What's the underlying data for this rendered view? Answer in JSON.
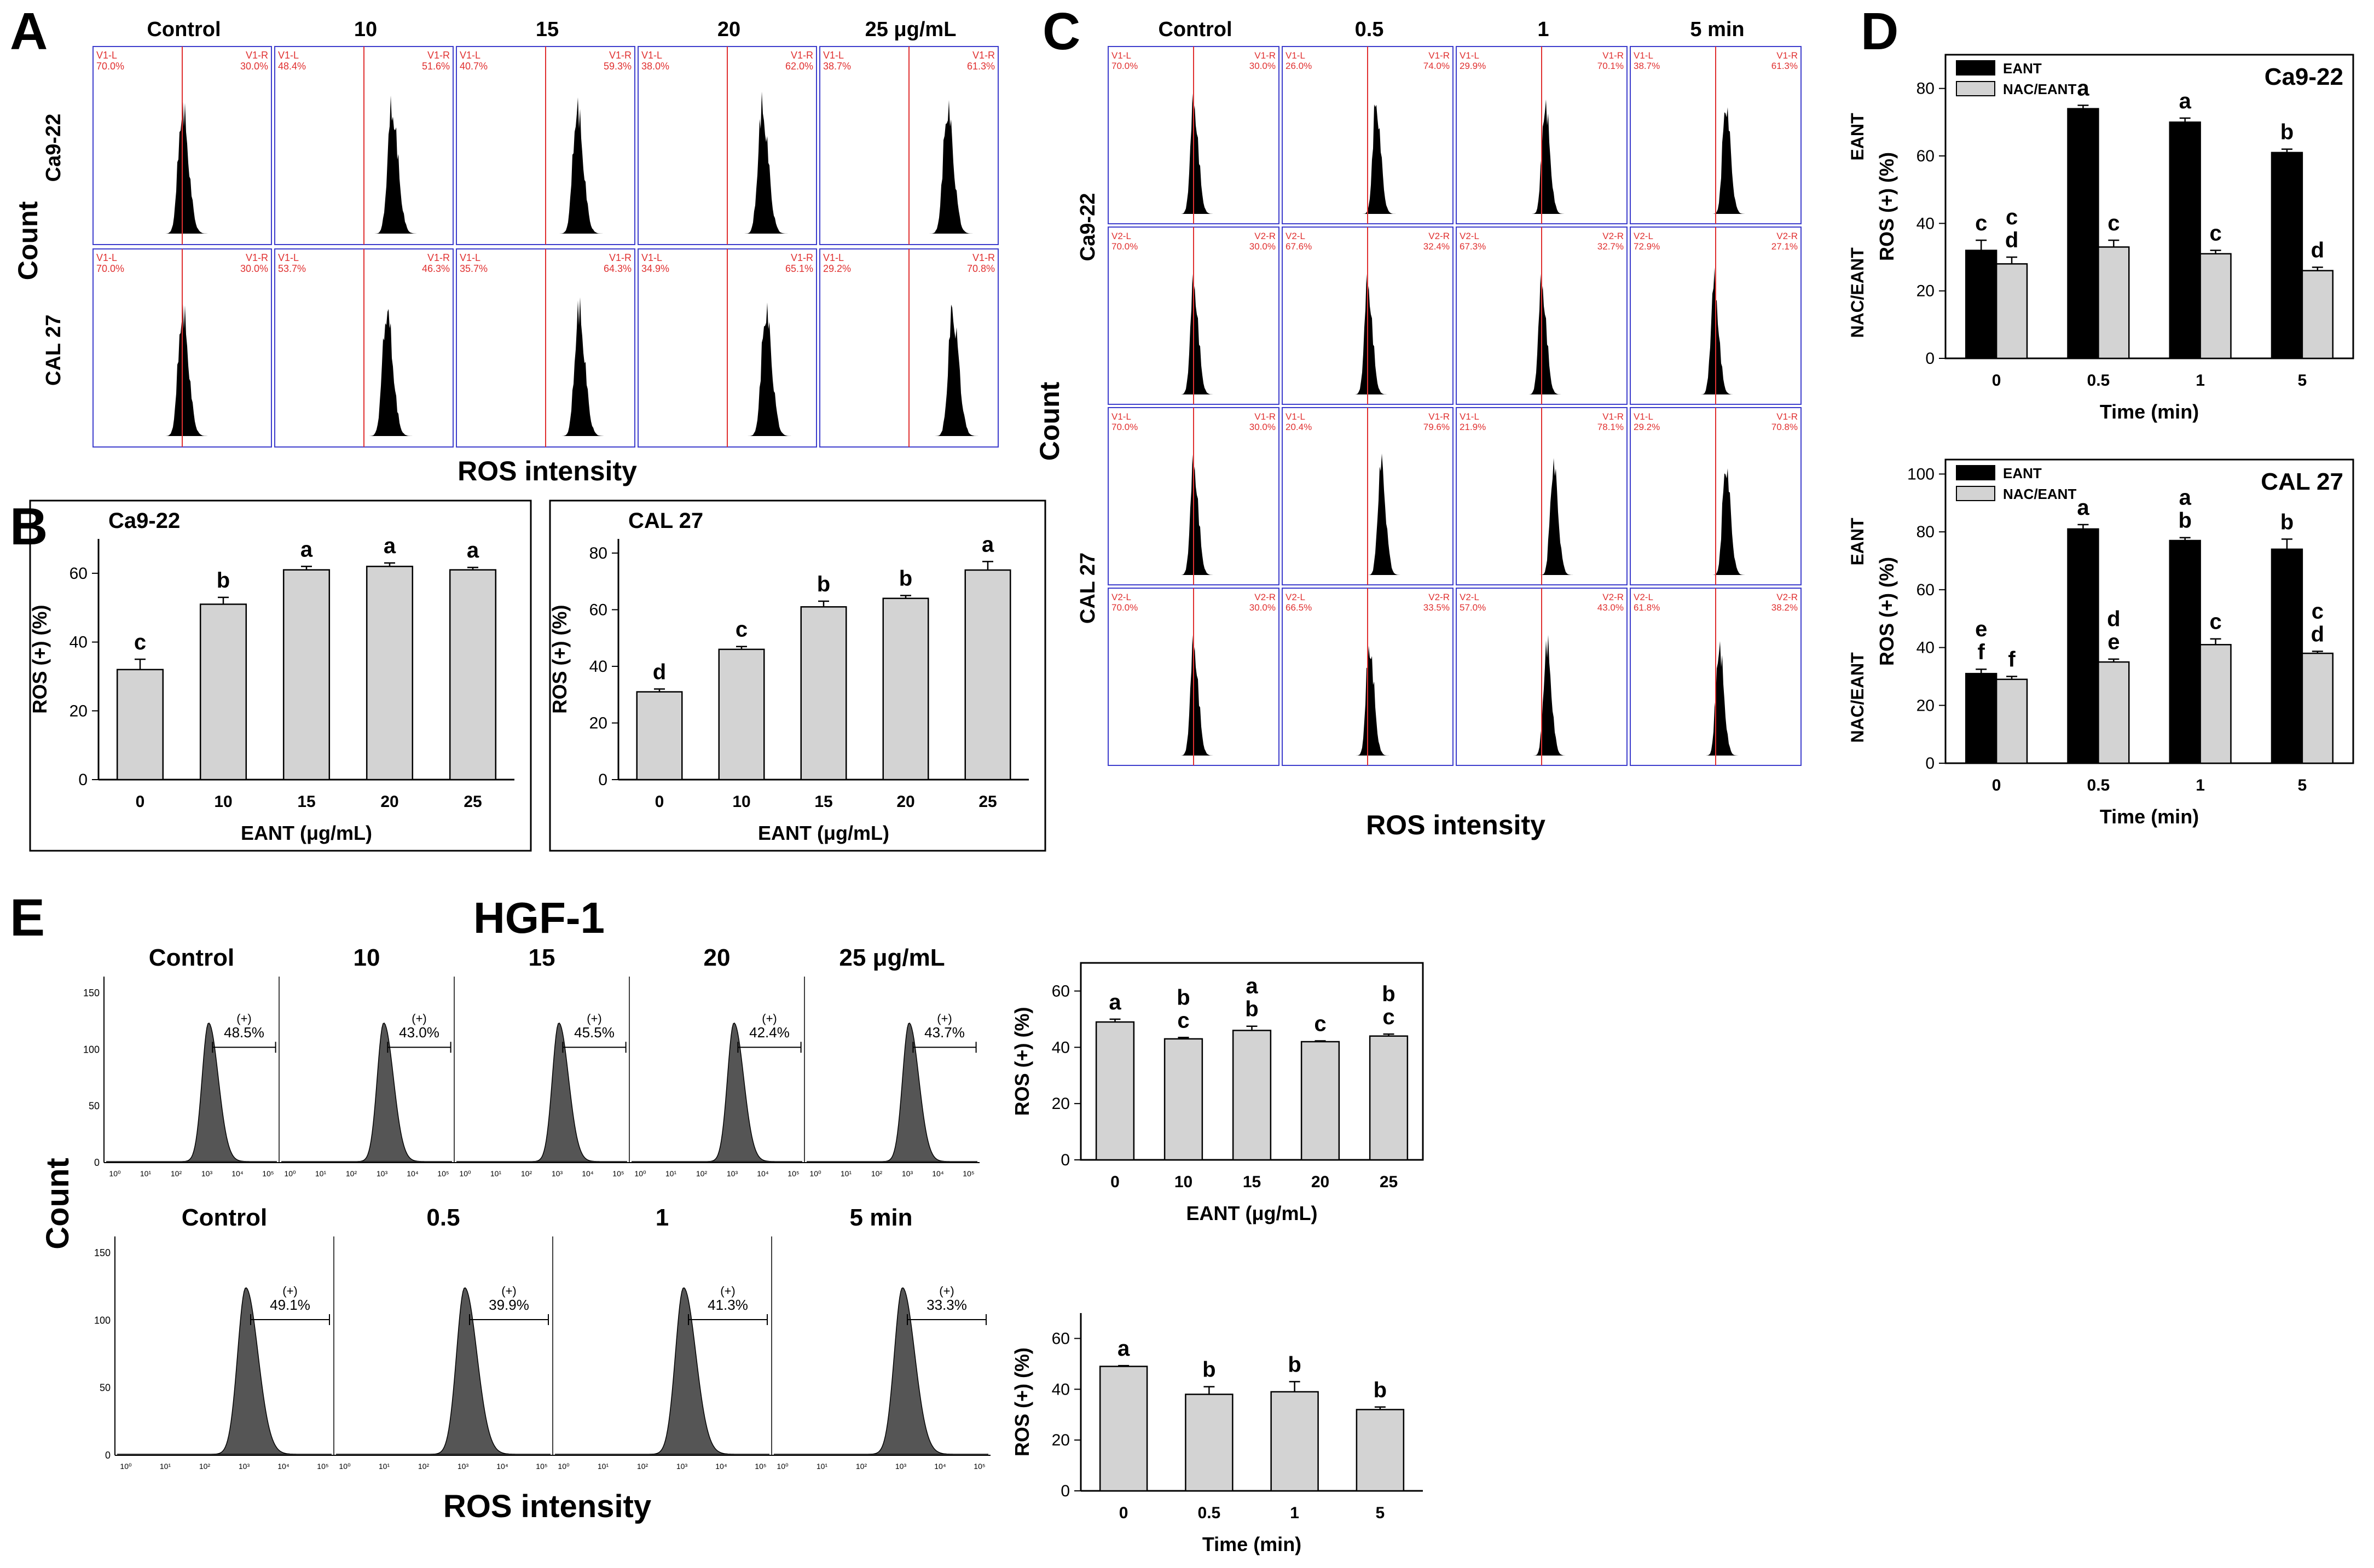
{
  "panels": {
    "A": {
      "letter": "A",
      "col_labels": [
        "Control",
        "10",
        "15",
        "20",
        "25 μg/mL"
      ],
      "row_labels": [
        "Ca9-22",
        "CAL 27"
      ],
      "y_title": "Count",
      "x_title": "ROS intensity",
      "gate_left_label": "V1-L",
      "gate_right_label": "V1-R",
      "left_pct": [
        [
          "70.0%",
          "48.4%",
          "40.7%",
          "38.0%",
          "38.7%"
        ],
        [
          "70.0%",
          "53.7%",
          "35.7%",
          "34.9%",
          "29.2%"
        ]
      ],
      "right_pct": [
        [
          "30.0%",
          "51.6%",
          "59.3%",
          "62.0%",
          "61.3%"
        ],
        [
          "30.0%",
          "46.3%",
          "64.3%",
          "65.1%",
          "70.8%"
        ]
      ],
      "peak_pos": [
        [
          0.5,
          0.66,
          0.68,
          0.7,
          0.72
        ],
        [
          0.5,
          0.63,
          0.69,
          0.72,
          0.75
        ]
      ]
    },
    "C": {
      "letter": "C",
      "col_labels": [
        "Control",
        "0.5",
        "1",
        "5 min"
      ],
      "row_labels": [
        "Ca9-22",
        "CAL 27"
      ],
      "y_title": "Count",
      "x_title": "ROS intensity",
      "gate_labels": [
        [
          "V1-L",
          "V1-R"
        ],
        [
          "V2-L",
          "V2-R"
        ],
        [
          "V1-L",
          "V1-R"
        ],
        [
          "V2-L",
          "V2-R"
        ]
      ],
      "left_pct": [
        [
          "70.0%",
          "26.0%",
          "29.9%",
          "38.7%"
        ],
        [
          "70.0%",
          "67.6%",
          "67.3%",
          "72.9%"
        ],
        [
          "70.0%",
          "20.4%",
          "21.9%",
          "29.2%"
        ],
        [
          "70.0%",
          "66.5%",
          "57.0%",
          "61.8%"
        ]
      ],
      "right_pct": [
        [
          "30.0%",
          "74.0%",
          "70.1%",
          "61.3%"
        ],
        [
          "30.0%",
          "32.4%",
          "32.7%",
          "27.1%"
        ],
        [
          "30.0%",
          "79.6%",
          "78.1%",
          "70.8%"
        ],
        [
          "30.0%",
          "33.5%",
          "43.0%",
          "38.2%"
        ]
      ],
      "peak_pos": [
        [
          0.5,
          0.55,
          0.52,
          0.56
        ],
        [
          0.5,
          0.5,
          0.5,
          0.49
        ],
        [
          0.5,
          0.58,
          0.57,
          0.56
        ],
        [
          0.5,
          0.51,
          0.53,
          0.52
        ]
      ]
    },
    "E": {
      "letter": "E",
      "title": "HGF-1",
      "col_labels_top": [
        "Control",
        "10",
        "15",
        "20",
        "25 μg/mL"
      ],
      "col_labels_bottom": [
        "Control",
        "0.5",
        "1",
        "5 min"
      ],
      "pos_label": "(+)",
      "pct_top": [
        "48.5%",
        "43.0%",
        "45.5%",
        "42.4%",
        "43.7%"
      ],
      "pct_bottom": [
        "49.1%",
        "39.9%",
        "41.3%",
        "33.3%"
      ],
      "y_title": "Count",
      "x_title": "ROS intensity",
      "y_ticks": [
        "150",
        "100",
        "50",
        "0"
      ],
      "x_ticks": [
        "10⁰",
        "10¹",
        "10²",
        "10³",
        "10⁴",
        "10⁵"
      ]
    },
    "B": {
      "letter": "B"
    },
    "D": {
      "letter": "D"
    }
  },
  "chart_data": [
    {
      "id": "B-ca922",
      "type": "bar",
      "title": "Ca9-22",
      "categories": [
        "0",
        "10",
        "15",
        "20",
        "25"
      ],
      "values": [
        32,
        51,
        61,
        62,
        61
      ],
      "errors": [
        3,
        2,
        1,
        1,
        0.7
      ],
      "letters": [
        [
          "c"
        ],
        [
          "b"
        ],
        [
          "a"
        ],
        [
          "a"
        ],
        [
          "a"
        ]
      ],
      "xlabel": "EANT (μg/mL)",
      "ylabel": "ROS (+) (%)",
      "ylim": [
        0,
        70
      ],
      "yticks": [
        0,
        20,
        40,
        60
      ]
    },
    {
      "id": "B-cal27",
      "type": "bar",
      "title": "CAL 27",
      "categories": [
        "0",
        "10",
        "15",
        "20",
        "25"
      ],
      "values": [
        31,
        46,
        61,
        64,
        74
      ],
      "errors": [
        1,
        1,
        2,
        1,
        3
      ],
      "letters": [
        [
          "d"
        ],
        [
          "c"
        ],
        [
          "b"
        ],
        [
          "b"
        ],
        [
          "a"
        ]
      ],
      "xlabel": "EANT (μg/mL)",
      "ylabel": "ROS (+) (%)",
      "ylim": [
        0,
        85
      ],
      "yticks": [
        0,
        20,
        40,
        60,
        80
      ]
    },
    {
      "id": "D-ca922",
      "type": "bar",
      "title": "Ca9-22",
      "categories": [
        "0",
        "0.5",
        "1",
        "5"
      ],
      "series": [
        {
          "name": "EANT",
          "color": "#000000",
          "values": [
            32,
            74,
            70,
            61
          ],
          "errors": [
            3,
            1,
            1.2,
            1
          ],
          "letters": [
            [
              "c"
            ],
            [
              "a"
            ],
            [
              "a"
            ],
            [
              "b"
            ]
          ]
        },
        {
          "name": "NAC/EANT",
          "color": "#d3d3d3",
          "values": [
            28,
            33,
            31,
            26
          ],
          "errors": [
            2,
            2,
            1,
            1
          ],
          "letters": [
            [
              "c",
              "d"
            ],
            [
              "c"
            ],
            [
              "c"
            ],
            [
              "d"
            ]
          ]
        }
      ],
      "xlabel": "Time (min)",
      "ylabel": "ROS (+) (%)",
      "side_labels": [
        "EANT",
        "NAC/EANT"
      ],
      "ylim": [
        0,
        90
      ],
      "yticks": [
        0,
        20,
        40,
        60,
        80
      ]
    },
    {
      "id": "D-cal27",
      "type": "bar",
      "title": "CAL 27",
      "categories": [
        "0",
        "0.5",
        "1",
        "5"
      ],
      "series": [
        {
          "name": "EANT",
          "color": "#000000",
          "values": [
            31,
            81,
            77,
            74
          ],
          "errors": [
            1.5,
            1.5,
            1,
            3.5
          ],
          "letters": [
            [
              "e",
              "f"
            ],
            [
              "a"
            ],
            [
              "a",
              "b"
            ],
            [
              "b"
            ]
          ]
        },
        {
          "name": "NAC/EANT",
          "color": "#d3d3d3",
          "values": [
            29,
            35,
            41,
            38
          ],
          "errors": [
            1,
            1,
            2,
            0.7
          ],
          "letters": [
            [
              "f"
            ],
            [
              "d",
              "e"
            ],
            [
              "c"
            ],
            [
              "c",
              "d"
            ]
          ]
        }
      ],
      "xlabel": "Time (min)",
      "ylabel": "ROS (+) (%)",
      "side_labels": [
        "EANT",
        "NAC/EANT"
      ],
      "ylim": [
        0,
        105
      ],
      "yticks": [
        0,
        20,
        40,
        60,
        80,
        100
      ]
    },
    {
      "id": "E-dose",
      "type": "bar",
      "title": "",
      "categories": [
        "0",
        "10",
        "15",
        "20",
        "25"
      ],
      "values": [
        49,
        43,
        46,
        42,
        44
      ],
      "errors": [
        1,
        0.5,
        1.5,
        0.3,
        0.7
      ],
      "letters": [
        [
          "a"
        ],
        [
          "b",
          "c"
        ],
        [
          "a",
          "b"
        ],
        [
          "c"
        ],
        [
          "b",
          "c"
        ]
      ],
      "xlabel": "EANT (μg/mL)",
      "ylabel": "ROS (+) (%)",
      "ylim": [
        0,
        70
      ],
      "yticks": [
        0,
        20,
        40,
        60
      ]
    },
    {
      "id": "E-time",
      "type": "bar",
      "title": "",
      "categories": [
        "0",
        "0.5",
        "1",
        "5"
      ],
      "values": [
        49,
        38,
        39,
        32
      ],
      "errors": [
        0.3,
        3,
        4,
        1
      ],
      "letters": [
        [
          "a"
        ],
        [
          "b"
        ],
        [
          "b"
        ],
        [
          "b"
        ]
      ],
      "xlabel": "Time (min)",
      "ylabel": "ROS (+) (%)",
      "ylim": [
        0,
        70
      ],
      "yticks": [
        0,
        20,
        40,
        60
      ]
    }
  ]
}
